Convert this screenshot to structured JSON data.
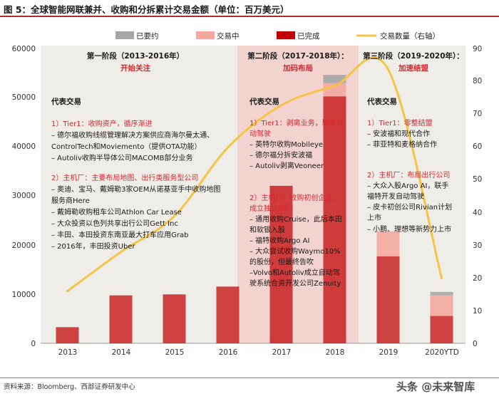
{
  "figure_title": "图 5：全球智能网联兼并、收购和分拆累计交易金额（单位：百万美元）",
  "source": "资料来源：Bloomberg、西部证券研发中心",
  "watermark": "头条 @未来智库",
  "colors": {
    "announced": "#a6a6a6",
    "in_progress": "#f4a9a0",
    "completed": "#c00000",
    "volume_line": "#f6c445",
    "phase1_bg": "#efede8",
    "phase2_bg": "#f2d3d0",
    "phase3_bg": "#efede8",
    "red_text": "#d7262c"
  },
  "chart_data": {
    "type": "bar",
    "title": "全球智能网联兼并、收购和分拆累计交易金额（单位：百万美元）",
    "categories": [
      "2013",
      "2014",
      "2015",
      "2016",
      "2017",
      "2018",
      "2019",
      "2020YTD"
    ],
    "stacked": true,
    "series": [
      {
        "name": "已完成",
        "values": [
          3300,
          9800,
          10000,
          11600,
          32200,
          50500,
          17800,
          5600
        ]
      },
      {
        "name": "交易中",
        "values": [
          0,
          0,
          0,
          0,
          0,
          2700,
          5100,
          4200
        ]
      },
      {
        "name": "已要约",
        "values": [
          0,
          0,
          0,
          0,
          0,
          1700,
          0,
          700
        ]
      }
    ],
    "line_series": {
      "name": "交易数量（右轴）",
      "axis": "right",
      "values": [
        16,
        28,
        39,
        60,
        73,
        79,
        84,
        20
      ]
    },
    "ylim": [
      0,
      60000
    ],
    "yticks": [
      0,
      10000,
      20000,
      30000,
      40000,
      50000,
      60000
    ],
    "ylim_right": [
      0,
      90
    ],
    "yticks_right": [
      0,
      10,
      20,
      30,
      40,
      50,
      60,
      70,
      80,
      90
    ],
    "legend": [
      "已要约",
      "交易中",
      "已完成",
      "交易数量（右轴）"
    ],
    "legend_position": "top"
  },
  "phases": [
    {
      "title": "第一阶段（2013-2016年）",
      "subtitle": "开始关注",
      "rep_label": "代表交易",
      "groups": [
        {
          "head": "1）Tier1：收购资产，循序渐进",
          "items": [
            "– 德尔福收购线缆管理解决方案供应商海尔曼太通、",
            "ControlTech和Moviemento（提供OTA功能）",
            "– Autoliv收购半导体公司MACOMB部分业务"
          ]
        },
        {
          "head": "2）主机厂：主要布局地图、出行类服务型公司",
          "items": [
            "– 奥迪、宝马、戴姆勒3家OEM从诺基亚手中收购地图",
            "服务商Here",
            "– 戴姆勒收购租车公司Athlon Car Lease",
            "– 大众投资以色列共享出行公司Gett Inc",
            "– 丰田、本田投资东南亚最大打车应用Grab",
            "– 2016年，丰田投资Uber"
          ]
        }
      ]
    },
    {
      "title": "第二阶段（2017-2018年）：",
      "subtitle": "加码布局",
      "rep_label": "代表交易",
      "groups": [
        {
          "head": "1）Tier1：剥离业务，聚焦自",
          "head2": "动驾驶",
          "items": [
            "– 英特尔收购Mobileye",
            "– 德尔福分拆安波福",
            "– Autoliv剥离Veoneer"
          ]
        },
        {
          "head": "2）主机厂：收购初创企业，",
          "head2": "成立独立部门",
          "items": [
            "– 通用收购Cruise，此后本田",
            "和软银入股",
            "– 福特收购Argo AI",
            "– 大众尝试收购Waymo10%",
            "的股份，但最终告吹",
            "–Volvo和Autoliv成立自动驾",
            "驶系统合资开发公司Zenuity"
          ]
        }
      ]
    },
    {
      "title": "第三阶段（2019-2020年）：",
      "subtitle": "加速结盟",
      "rep_label": "代表交易",
      "groups": [
        {
          "head": "1）Tier1：零整结盟",
          "items": [
            "– 安波福和现代合作",
            "– 菲亚特和麦格纳合作"
          ]
        },
        {
          "head": "2）主机厂：布局出行公司",
          "items": [
            "– 大众入股Argo AI，联手",
            "福特开发自动驾驶",
            "– 皮卡初创公司Rivian计划",
            "上市",
            "– 小鹏、理想等新势力上市"
          ]
        }
      ]
    }
  ]
}
